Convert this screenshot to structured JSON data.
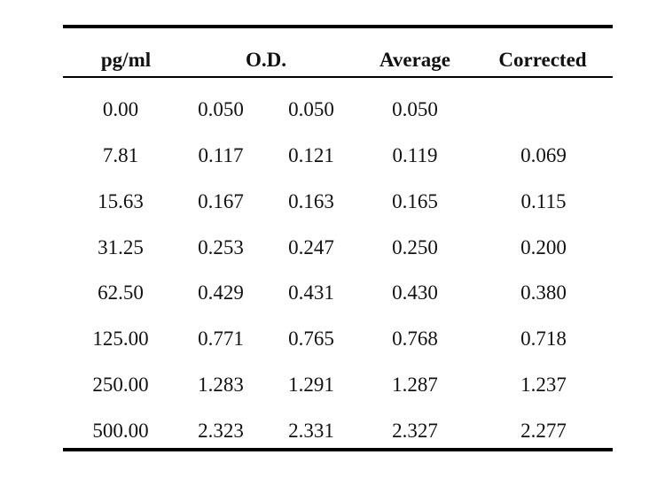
{
  "table": {
    "headers": {
      "pgml": "pg/ml",
      "od": "O.D.",
      "average": "Average",
      "corrected": "Corrected"
    },
    "rows": [
      {
        "pgml": "0.00",
        "od1": "0.050",
        "od2": "0.050",
        "average": "0.050",
        "corrected": ""
      },
      {
        "pgml": "7.81",
        "od1": "0.117",
        "od2": "0.121",
        "average": "0.119",
        "corrected": "0.069"
      },
      {
        "pgml": "15.63",
        "od1": "0.167",
        "od2": "0.163",
        "average": "0.165",
        "corrected": "0.115"
      },
      {
        "pgml": "31.25",
        "od1": "0.253",
        "od2": "0.247",
        "average": "0.250",
        "corrected": "0.200"
      },
      {
        "pgml": "62.50",
        "od1": "0.429",
        "od2": "0.431",
        "average": "0.430",
        "corrected": "0.380"
      },
      {
        "pgml": "125.00",
        "od1": "0.771",
        "od2": "0.765",
        "average": "0.768",
        "corrected": "0.718"
      },
      {
        "pgml": "250.00",
        "od1": "1.283",
        "od2": "1.291",
        "average": "1.287",
        "corrected": "1.237"
      },
      {
        "pgml": "500.00",
        "od1": "2.323",
        "od2": "2.331",
        "average": "2.327",
        "corrected": "2.277"
      }
    ]
  }
}
